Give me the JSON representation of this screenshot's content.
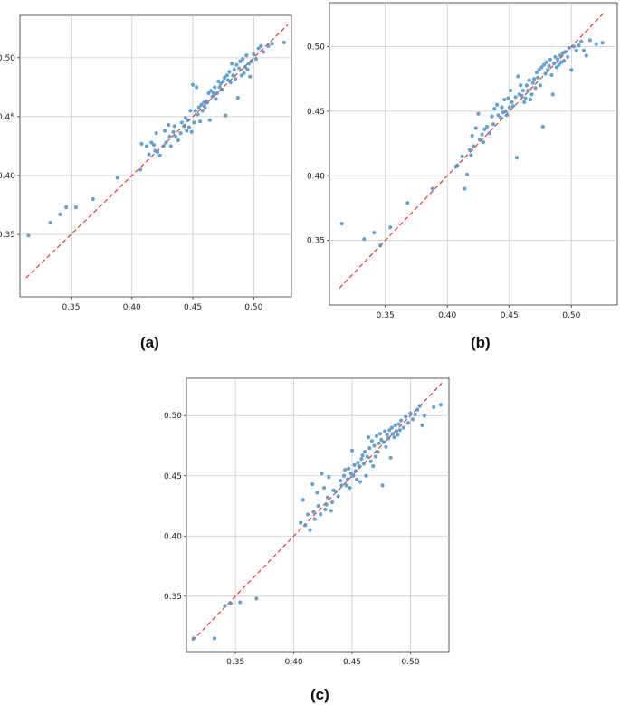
{
  "chart_data": [
    {
      "type": "scatter",
      "caption": "(a)",
      "xlim": [
        0.308,
        0.531
      ],
      "ylim": [
        0.297,
        0.536
      ],
      "xticks": [
        0.35,
        0.4,
        0.45,
        0.5
      ],
      "yticks": [
        0.35,
        0.4,
        0.45,
        0.5
      ],
      "xtick_labels": [
        "0.35",
        "0.40",
        "0.45",
        "0.50"
      ],
      "ytick_labels": [
        "0.35",
        "0.40",
        "0.45",
        "0.50"
      ],
      "grid": true,
      "reference_line": {
        "x": [
          0.313,
          0.528
        ],
        "y": [
          0.313,
          0.528
        ],
        "style": "dashed",
        "color": "#e53935"
      },
      "point_color": "#4a90c8",
      "points": [
        [
          0.315,
          0.349
        ],
        [
          0.333,
          0.36
        ],
        [
          0.341,
          0.367
        ],
        [
          0.346,
          0.373
        ],
        [
          0.354,
          0.373
        ],
        [
          0.368,
          0.38
        ],
        [
          0.388,
          0.398
        ],
        [
          0.407,
          0.405
        ],
        [
          0.408,
          0.427
        ],
        [
          0.412,
          0.425
        ],
        [
          0.414,
          0.418
        ],
        [
          0.416,
          0.428
        ],
        [
          0.418,
          0.426
        ],
        [
          0.419,
          0.421
        ],
        [
          0.42,
          0.436
        ],
        [
          0.421,
          0.42
        ],
        [
          0.423,
          0.417
        ],
        [
          0.426,
          0.425
        ],
        [
          0.427,
          0.438
        ],
        [
          0.428,
          0.428
        ],
        [
          0.43,
          0.443
        ],
        [
          0.431,
          0.433
        ],
        [
          0.432,
          0.425
        ],
        [
          0.434,
          0.437
        ],
        [
          0.435,
          0.442
        ],
        [
          0.436,
          0.433
        ],
        [
          0.438,
          0.43
        ],
        [
          0.44,
          0.436
        ],
        [
          0.441,
          0.445
        ],
        [
          0.443,
          0.442
        ],
        [
          0.444,
          0.449
        ],
        [
          0.445,
          0.438
        ],
        [
          0.446,
          0.447
        ],
        [
          0.447,
          0.441
        ],
        [
          0.448,
          0.455
        ],
        [
          0.449,
          0.437
        ],
        [
          0.45,
          0.477
        ],
        [
          0.451,
          0.445
        ],
        [
          0.452,
          0.455
        ],
        [
          0.453,
          0.475
        ],
        [
          0.454,
          0.452
        ],
        [
          0.455,
          0.458
        ],
        [
          0.456,
          0.446
        ],
        [
          0.457,
          0.46
        ],
        [
          0.458,
          0.455
        ],
        [
          0.459,
          0.462
        ],
        [
          0.46,
          0.458
        ],
        [
          0.461,
          0.463
        ],
        [
          0.462,
          0.462
        ],
        [
          0.463,
          0.47
        ],
        [
          0.464,
          0.447
        ],
        [
          0.465,
          0.472
        ],
        [
          0.466,
          0.467
        ],
        [
          0.467,
          0.47
        ],
        [
          0.468,
          0.475
        ],
        [
          0.469,
          0.465
        ],
        [
          0.47,
          0.47
        ],
        [
          0.471,
          0.48
        ],
        [
          0.472,
          0.475
        ],
        [
          0.473,
          0.478
        ],
        [
          0.474,
          0.473
        ],
        [
          0.475,
          0.48
        ],
        [
          0.476,
          0.483
        ],
        [
          0.477,
          0.451
        ],
        [
          0.478,
          0.485
        ],
        [
          0.479,
          0.481
        ],
        [
          0.48,
          0.488
        ],
        [
          0.481,
          0.479
        ],
        [
          0.482,
          0.495
        ],
        [
          0.483,
          0.485
        ],
        [
          0.484,
          0.49
        ],
        [
          0.485,
          0.482
        ],
        [
          0.486,
          0.494
        ],
        [
          0.487,
          0.466
        ],
        [
          0.488,
          0.491
        ],
        [
          0.489,
          0.497
        ],
        [
          0.49,
          0.485
        ],
        [
          0.491,
          0.499
        ],
        [
          0.492,
          0.487
        ],
        [
          0.493,
          0.492
        ],
        [
          0.494,
          0.502
        ],
        [
          0.495,
          0.49
        ],
        [
          0.496,
          0.495
        ],
        [
          0.497,
          0.484
        ],
        [
          0.498,
          0.497
        ],
        [
          0.5,
          0.503
        ],
        [
          0.502,
          0.499
        ],
        [
          0.504,
          0.508
        ],
        [
          0.506,
          0.51
        ],
        [
          0.508,
          0.505
        ],
        [
          0.512,
          0.51
        ],
        [
          0.515,
          0.512
        ],
        [
          0.525,
          0.513
        ]
      ]
    },
    {
      "type": "scatter",
      "caption": "(b)",
      "xlim": [
        0.305,
        0.537
      ],
      "ylim": [
        0.3,
        0.534
      ],
      "xticks": [
        0.35,
        0.4,
        0.45,
        0.5
      ],
      "yticks": [
        0.35,
        0.4,
        0.45,
        0.5
      ],
      "xtick_labels": [
        "0.35",
        "0.40",
        "0.45",
        "0.50"
      ],
      "ytick_labels": [
        "0.35",
        "0.40",
        "0.45",
        "0.50"
      ],
      "grid": true,
      "reference_line": {
        "x": [
          0.313,
          0.527
        ],
        "y": [
          0.313,
          0.527
        ],
        "style": "dashed",
        "color": "#e53935"
      },
      "point_color": "#4a90c8",
      "points": [
        [
          0.315,
          0.363
        ],
        [
          0.333,
          0.351
        ],
        [
          0.341,
          0.356
        ],
        [
          0.346,
          0.346
        ],
        [
          0.354,
          0.36
        ],
        [
          0.368,
          0.379
        ],
        [
          0.388,
          0.39
        ],
        [
          0.407,
          0.407
        ],
        [
          0.408,
          0.408
        ],
        [
          0.412,
          0.415
        ],
        [
          0.414,
          0.39
        ],
        [
          0.416,
          0.401
        ],
        [
          0.418,
          0.42
        ],
        [
          0.419,
          0.416
        ],
        [
          0.42,
          0.431
        ],
        [
          0.421,
          0.423
        ],
        [
          0.423,
          0.437
        ],
        [
          0.425,
          0.448
        ],
        [
          0.426,
          0.428
        ],
        [
          0.428,
          0.432
        ],
        [
          0.429,
          0.426
        ],
        [
          0.43,
          0.436
        ],
        [
          0.432,
          0.438
        ],
        [
          0.434,
          0.433
        ],
        [
          0.436,
          0.446
        ],
        [
          0.437,
          0.44
        ],
        [
          0.438,
          0.452
        ],
        [
          0.44,
          0.455
        ],
        [
          0.441,
          0.447
        ],
        [
          0.443,
          0.445
        ],
        [
          0.444,
          0.453
        ],
        [
          0.445,
          0.449
        ],
        [
          0.446,
          0.459
        ],
        [
          0.447,
          0.45
        ],
        [
          0.448,
          0.447
        ],
        [
          0.449,
          0.46
        ],
        [
          0.45,
          0.453
        ],
        [
          0.451,
          0.466
        ],
        [
          0.452,
          0.457
        ],
        [
          0.453,
          0.454
        ],
        [
          0.455,
          0.461
        ],
        [
          0.456,
          0.414
        ],
        [
          0.457,
          0.477
        ],
        [
          0.458,
          0.463
        ],
        [
          0.459,
          0.47
        ],
        [
          0.46,
          0.462
        ],
        [
          0.461,
          0.466
        ],
        [
          0.462,
          0.457
        ],
        [
          0.463,
          0.46
        ],
        [
          0.464,
          0.47
        ],
        [
          0.465,
          0.466
        ],
        [
          0.466,
          0.474
        ],
        [
          0.467,
          0.459
        ],
        [
          0.468,
          0.463
        ],
        [
          0.469,
          0.472
        ],
        [
          0.47,
          0.475
        ],
        [
          0.471,
          0.468
        ],
        [
          0.472,
          0.48
        ],
        [
          0.473,
          0.476
        ],
        [
          0.474,
          0.482
        ],
        [
          0.475,
          0.47
        ],
        [
          0.476,
          0.484
        ],
        [
          0.477,
          0.438
        ],
        [
          0.478,
          0.486
        ],
        [
          0.479,
          0.479
        ],
        [
          0.48,
          0.488
        ],
        [
          0.481,
          0.482
        ],
        [
          0.482,
          0.485
        ],
        [
          0.483,
          0.49
        ],
        [
          0.484,
          0.478
        ],
        [
          0.485,
          0.463
        ],
        [
          0.486,
          0.487
        ],
        [
          0.487,
          0.492
        ],
        [
          0.488,
          0.484
        ],
        [
          0.489,
          0.49
        ],
        [
          0.49,
          0.486
        ],
        [
          0.491,
          0.493
        ],
        [
          0.492,
          0.488
        ],
        [
          0.493,
          0.495
        ],
        [
          0.494,
          0.489
        ],
        [
          0.495,
          0.496
        ],
        [
          0.497,
          0.492
        ],
        [
          0.498,
          0.499
        ],
        [
          0.5,
          0.482
        ],
        [
          0.502,
          0.5
        ],
        [
          0.504,
          0.497
        ],
        [
          0.506,
          0.501
        ],
        [
          0.508,
          0.504
        ],
        [
          0.51,
          0.497
        ],
        [
          0.512,
          0.493
        ],
        [
          0.515,
          0.505
        ],
        [
          0.52,
          0.502
        ],
        [
          0.525,
          0.503
        ]
      ]
    },
    {
      "type": "scatter",
      "caption": "(c)",
      "xlim": [
        0.308,
        0.533
      ],
      "ylim": [
        0.304,
        0.531
      ],
      "xticks": [
        0.35,
        0.4,
        0.45,
        0.5
      ],
      "yticks": [
        0.35,
        0.4,
        0.45,
        0.5
      ],
      "xtick_labels": [
        "0.35",
        "0.40",
        "0.45",
        "0.50"
      ],
      "ytick_labels": [
        "0.35",
        "0.40",
        "0.45",
        "0.50"
      ],
      "grid": true,
      "reference_line": {
        "x": [
          0.313,
          0.527
        ],
        "y": [
          0.313,
          0.527
        ],
        "style": "dashed",
        "color": "#e53935"
      },
      "point_color": "#4a90c8",
      "points": [
        [
          0.314,
          0.315
        ],
        [
          0.332,
          0.315
        ],
        [
          0.341,
          0.342
        ],
        [
          0.346,
          0.344
        ],
        [
          0.354,
          0.345
        ],
        [
          0.368,
          0.348
        ],
        [
          0.406,
          0.411
        ],
        [
          0.408,
          0.43
        ],
        [
          0.41,
          0.409
        ],
        [
          0.412,
          0.418
        ],
        [
          0.414,
          0.405
        ],
        [
          0.416,
          0.443
        ],
        [
          0.417,
          0.42
        ],
        [
          0.418,
          0.414
        ],
        [
          0.42,
          0.436
        ],
        [
          0.421,
          0.425
        ],
        [
          0.423,
          0.418
        ],
        [
          0.424,
          0.452
        ],
        [
          0.426,
          0.44
        ],
        [
          0.427,
          0.422
        ],
        [
          0.428,
          0.426
        ],
        [
          0.429,
          0.432
        ],
        [
          0.43,
          0.449
        ],
        [
          0.432,
          0.421
        ],
        [
          0.433,
          0.428
        ],
        [
          0.434,
          0.438
        ],
        [
          0.436,
          0.437
        ],
        [
          0.438,
          0.433
        ],
        [
          0.44,
          0.446
        ],
        [
          0.441,
          0.442
        ],
        [
          0.443,
          0.45
        ],
        [
          0.444,
          0.455
        ],
        [
          0.445,
          0.442
        ],
        [
          0.446,
          0.447
        ],
        [
          0.447,
          0.456
        ],
        [
          0.448,
          0.44
        ],
        [
          0.449,
          0.452
        ],
        [
          0.45,
          0.471
        ],
        [
          0.451,
          0.45
        ],
        [
          0.452,
          0.459
        ],
        [
          0.453,
          0.454
        ],
        [
          0.454,
          0.447
        ],
        [
          0.455,
          0.461
        ],
        [
          0.456,
          0.458
        ],
        [
          0.457,
          0.445
        ],
        [
          0.458,
          0.464
        ],
        [
          0.459,
          0.467
        ],
        [
          0.46,
          0.46
        ],
        [
          0.461,
          0.47
        ],
        [
          0.462,
          0.45
        ],
        [
          0.463,
          0.466
        ],
        [
          0.464,
          0.482
        ],
        [
          0.465,
          0.473
        ],
        [
          0.466,
          0.462
        ],
        [
          0.467,
          0.479
        ],
        [
          0.468,
          0.458
        ],
        [
          0.469,
          0.475
        ],
        [
          0.47,
          0.466
        ],
        [
          0.471,
          0.483
        ],
        [
          0.472,
          0.47
        ],
        [
          0.473,
          0.477
        ],
        [
          0.474,
          0.485
        ],
        [
          0.475,
          0.48
        ],
        [
          0.476,
          0.442
        ],
        [
          0.477,
          0.478
        ],
        [
          0.478,
          0.487
        ],
        [
          0.479,
          0.474
        ],
        [
          0.48,
          0.484
        ],
        [
          0.481,
          0.481
        ],
        [
          0.482,
          0.488
        ],
        [
          0.483,
          0.465
        ],
        [
          0.484,
          0.49
        ],
        [
          0.485,
          0.485
        ],
        [
          0.486,
          0.482
        ],
        [
          0.487,
          0.492
        ],
        [
          0.488,
          0.487
        ],
        [
          0.489,
          0.484
        ],
        [
          0.49,
          0.493
        ],
        [
          0.491,
          0.488
        ],
        [
          0.492,
          0.496
        ],
        [
          0.494,
          0.49
        ],
        [
          0.496,
          0.499
        ],
        [
          0.498,
          0.494
        ],
        [
          0.5,
          0.502
        ],
        [
          0.502,
          0.497
        ],
        [
          0.504,
          0.501
        ],
        [
          0.506,
          0.505
        ],
        [
          0.508,
          0.508
        ],
        [
          0.51,
          0.492
        ],
        [
          0.512,
          0.5
        ],
        [
          0.52,
          0.507
        ],
        [
          0.526,
          0.509
        ]
      ]
    }
  ]
}
